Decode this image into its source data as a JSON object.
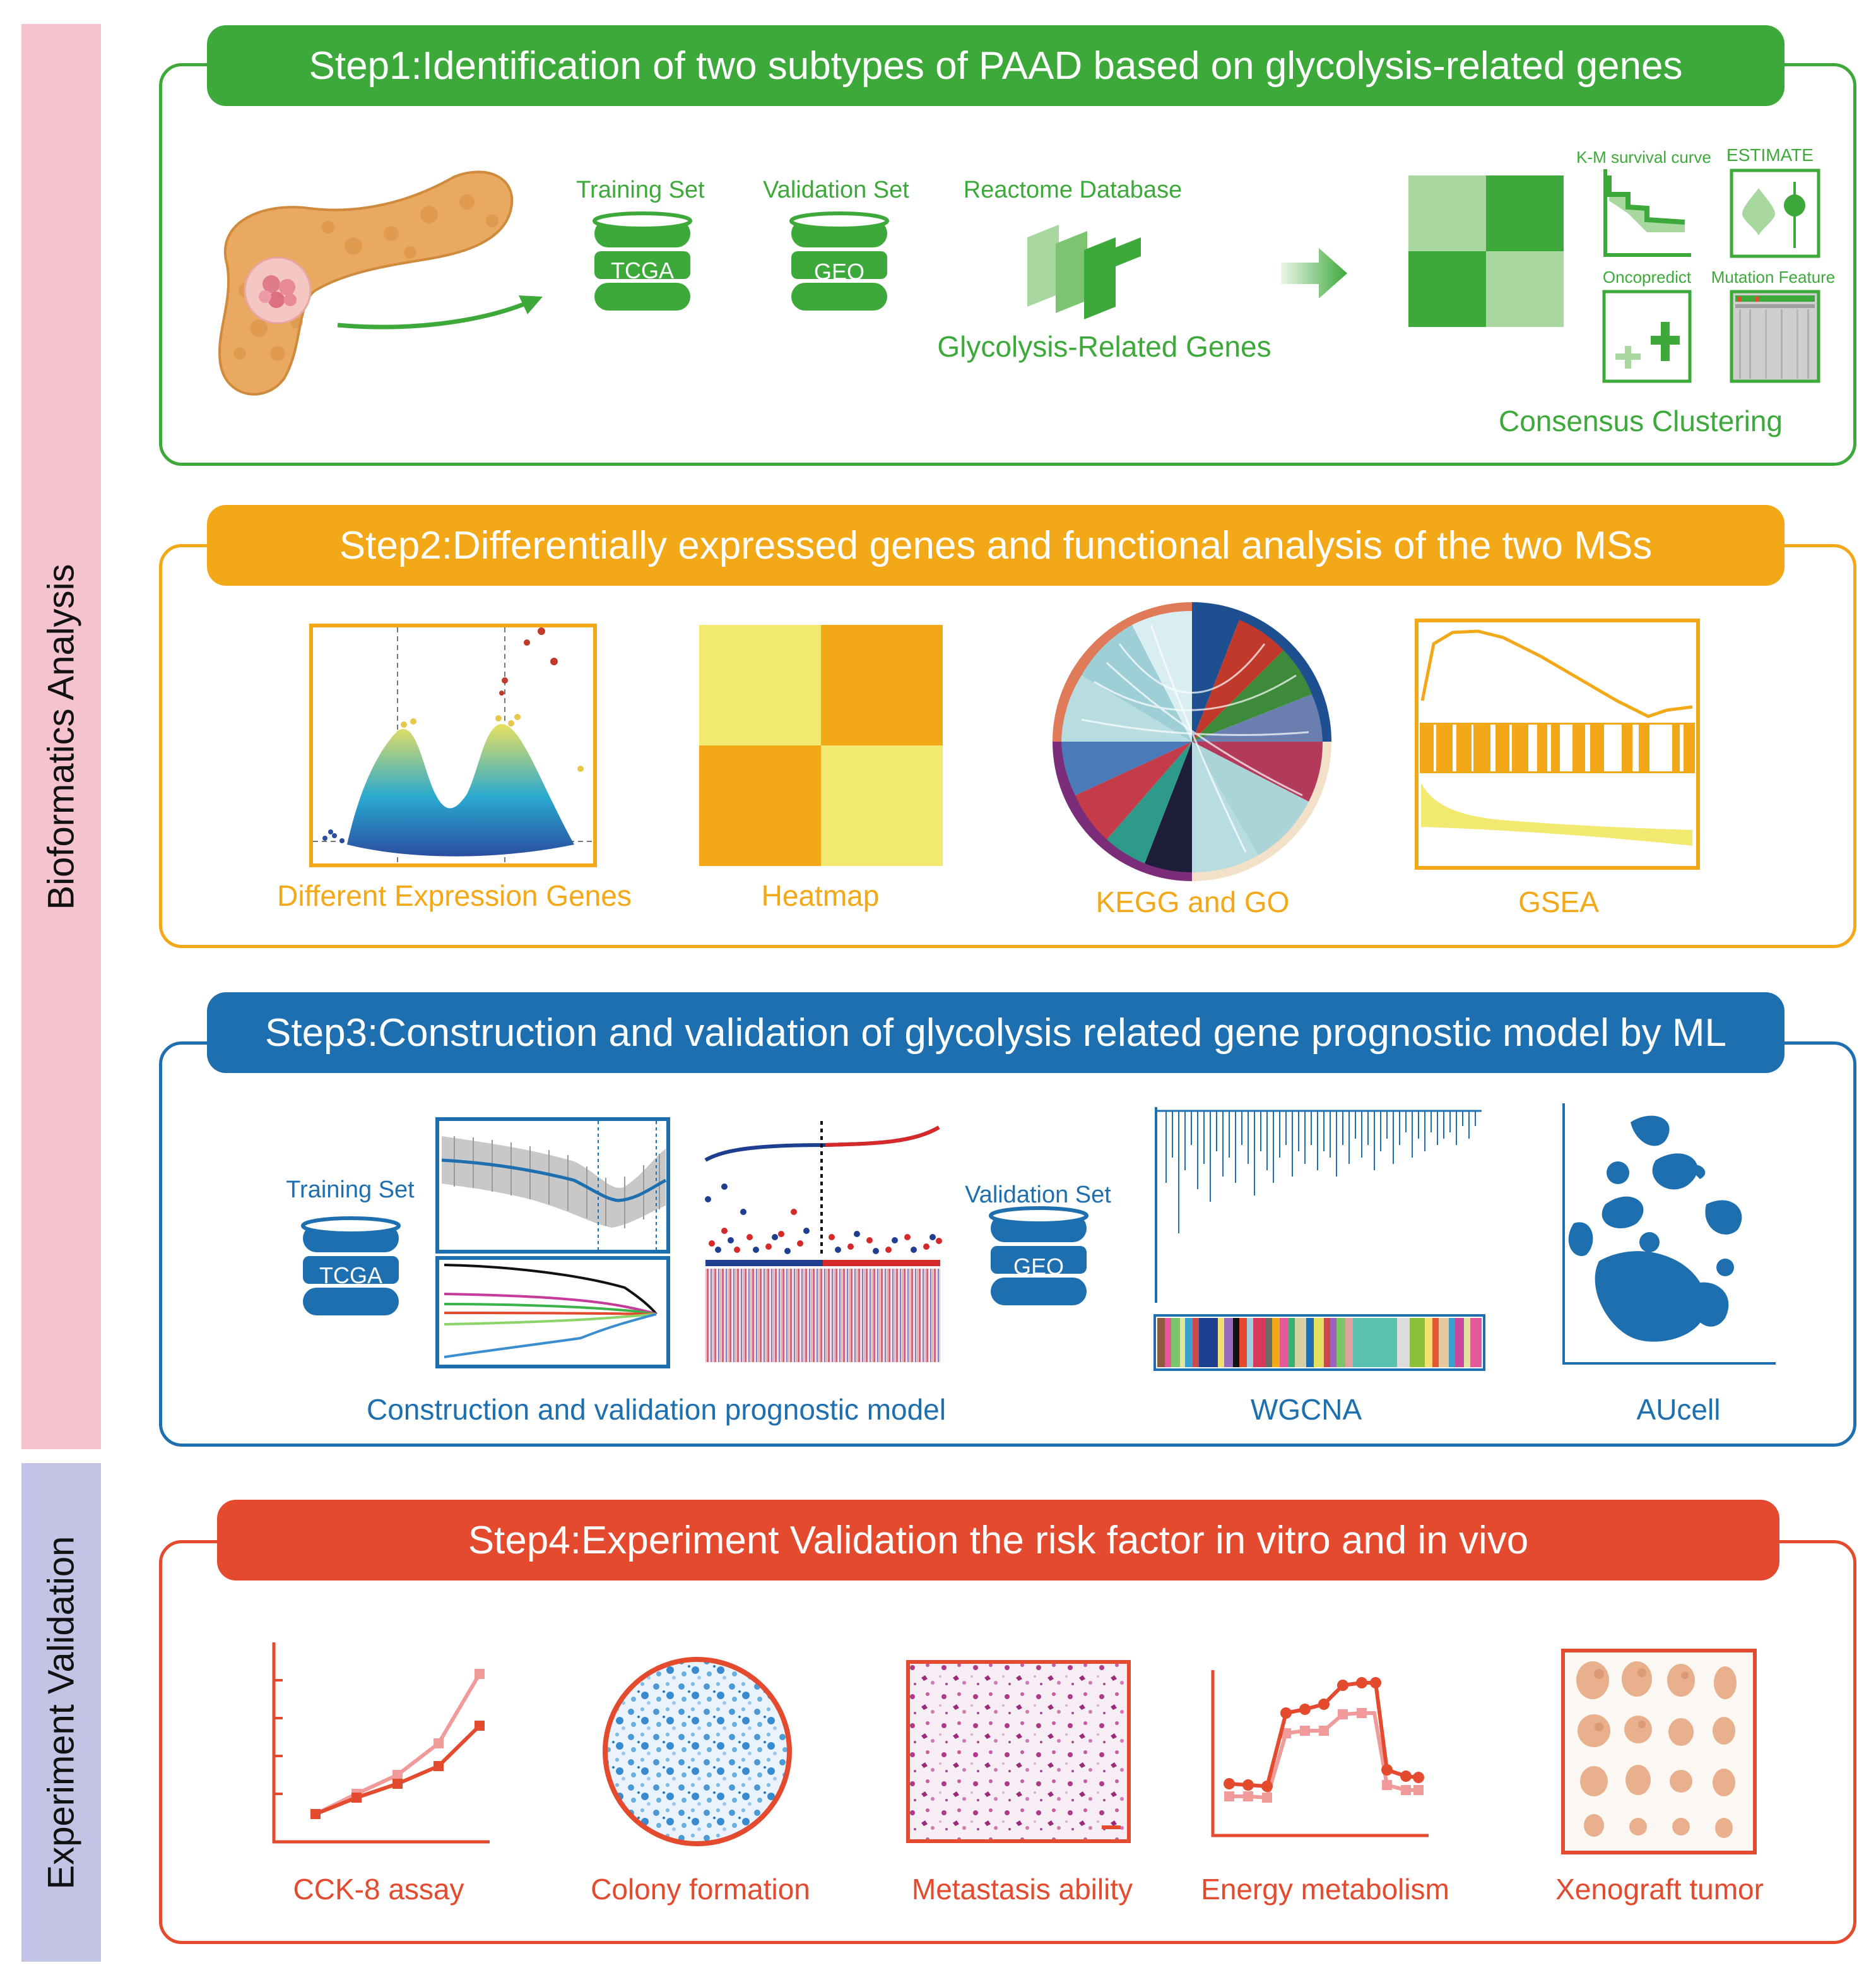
{
  "sidebar": {
    "bioinformatics": "Bioformatics Analysis",
    "experiment": "Experiment Validation"
  },
  "colors": {
    "green": "#3da93a",
    "orange": "#f2a817",
    "blue": "#1e6fb0",
    "red": "#e34a2e",
    "sidebar_pink": "#f5c3cf",
    "sidebar_purple": "#c3c3e6"
  },
  "step1": {
    "title": "Step1:Identification of two subtypes of PAAD based on glycolysis-related genes",
    "training_set": "Training Set",
    "tcga": "TCGA",
    "validation_set": "Validation Set",
    "geo": "GEO",
    "reactome": "Reactome Database",
    "glycolysis_genes": "Glycolysis-Related Genes",
    "km_curve": "K-M survival curve",
    "estimate": "ESTIMATE",
    "oncopredict": "Oncopredict",
    "mutation": "Mutation Feature",
    "consensus": "Consensus Clustering"
  },
  "step2": {
    "title": "Step2:Differentially expressed genes and functional analysis of the two MSs",
    "deg": "Different Expression Genes",
    "heatmap": "Heatmap",
    "kegg_go": "KEGG and GO",
    "gsea": "GSEA"
  },
  "step3": {
    "title": "Step3:Construction and validation of glycolysis related gene prognostic model by ML",
    "training_set": "Training Set",
    "tcga": "TCGA",
    "validation_set": "Validation Set",
    "geo": "GEO",
    "model": "Construction and validation prognostic model",
    "wgcna": "WGCNA",
    "aucell": "AUcell"
  },
  "step4": {
    "title": "Step4:Experiment Validation the risk factor in vitro and in vivo",
    "cck8": "CCK-8 assay",
    "colony": "Colony formation",
    "metastasis": "Metastasis ability",
    "energy": "Energy metabolism",
    "xenograft": "Xenograft tumor"
  }
}
